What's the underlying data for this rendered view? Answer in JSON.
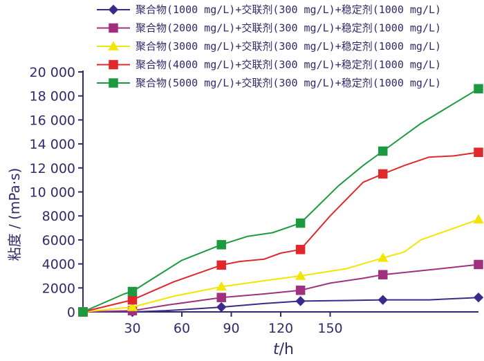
{
  "chart_data": {
    "type": "line",
    "xlabel_var": "t",
    "xlabel_unit": "/h",
    "ylabel": "粘度 / (mPa·s)",
    "ylim": [
      0,
      20000
    ],
    "xlim": [
      0,
      240
    ],
    "x_ticks": [
      30,
      60,
      90,
      120,
      150
    ],
    "y_ticks": [
      {
        "value": 0,
        "label": "0"
      },
      {
        "value": 2000,
        "label": "2000"
      },
      {
        "value": 4000,
        "label": "4000"
      },
      {
        "value": 6000,
        "label": "6000"
      },
      {
        "value": 8000,
        "label": "8000"
      },
      {
        "value": 10000,
        "label": "10 000"
      },
      {
        "value": 12000,
        "label": "12 000"
      },
      {
        "value": 14000,
        "label": "14 000"
      },
      {
        "value": 16000,
        "label": "16 000"
      },
      {
        "value": 18000,
        "label": "18 000"
      },
      {
        "value": 20000,
        "label": "20 000"
      }
    ],
    "legend_position": "top-right",
    "series": [
      {
        "name": "聚合物(1000 mg/L)+交联剂(300 mg/L)+稳定剂(1000 mg/L)",
        "color": "#3b2a8c",
        "marker": "diamond",
        "markers": [
          [
            0,
            0
          ],
          [
            30,
            0
          ],
          [
            84,
            400
          ],
          [
            132,
            900
          ],
          [
            182,
            1000
          ],
          [
            240,
            1200
          ]
        ],
        "line": [
          [
            0,
            0
          ],
          [
            30,
            0
          ],
          [
            50,
            100
          ],
          [
            84,
            400
          ],
          [
            110,
            700
          ],
          [
            132,
            900
          ],
          [
            160,
            950
          ],
          [
            182,
            1000
          ],
          [
            210,
            1000
          ],
          [
            240,
            1200
          ]
        ]
      },
      {
        "name": "聚合物(2000 mg/L)+交联剂(300 mg/L)+稳定剂(1000 mg/L)",
        "color": "#a0307e",
        "marker": "square",
        "markers": [
          [
            0,
            0
          ],
          [
            30,
            100
          ],
          [
            84,
            1200
          ],
          [
            132,
            1800
          ],
          [
            182,
            3100
          ],
          [
            240,
            3950
          ]
        ],
        "line": [
          [
            0,
            0
          ],
          [
            30,
            100
          ],
          [
            50,
            550
          ],
          [
            84,
            1200
          ],
          [
            110,
            1500
          ],
          [
            132,
            1800
          ],
          [
            150,
            2400
          ],
          [
            170,
            2800
          ],
          [
            182,
            3100
          ],
          [
            210,
            3500
          ],
          [
            240,
            3950
          ]
        ]
      },
      {
        "name": "聚合物(3000 mg/L)+交联剂(300 mg/L)+稳定剂(1000 mg/L)",
        "color": "#f2e600",
        "marker": "triangle",
        "markers": [
          [
            0,
            0
          ],
          [
            30,
            400
          ],
          [
            84,
            2100
          ],
          [
            132,
            3000
          ],
          [
            182,
            4500
          ],
          [
            240,
            7700
          ]
        ],
        "line": [
          [
            0,
            0
          ],
          [
            30,
            400
          ],
          [
            55,
            1300
          ],
          [
            84,
            2100
          ],
          [
            110,
            2600
          ],
          [
            132,
            3000
          ],
          [
            160,
            3600
          ],
          [
            182,
            4500
          ],
          [
            195,
            5000
          ],
          [
            205,
            6000
          ],
          [
            240,
            7700
          ]
        ]
      },
      {
        "name": "聚合物(4000 mg/L)+交联剂(300 mg/L)+稳定剂(1000 mg/L)",
        "color": "#e0282c",
        "marker": "square",
        "markers": [
          [
            0,
            0
          ],
          [
            30,
            1000
          ],
          [
            84,
            3900
          ],
          [
            132,
            5200
          ],
          [
            182,
            11500
          ],
          [
            240,
            13300
          ]
        ],
        "line": [
          [
            0,
            0
          ],
          [
            30,
            1000
          ],
          [
            55,
            2500
          ],
          [
            84,
            3900
          ],
          [
            95,
            4200
          ],
          [
            110,
            4400
          ],
          [
            120,
            4900
          ],
          [
            132,
            5200
          ],
          [
            150,
            8000
          ],
          [
            170,
            10800
          ],
          [
            182,
            11500
          ],
          [
            195,
            12200
          ],
          [
            210,
            12900
          ],
          [
            225,
            13000
          ],
          [
            240,
            13300
          ]
        ]
      },
      {
        "name": "聚合物(5000 mg/L)+交联剂(300 mg/L)+稳定剂(1000 mg/L)",
        "color": "#1c9a40",
        "marker": "square",
        "markers": [
          [
            0,
            0
          ],
          [
            30,
            1700
          ],
          [
            84,
            5600
          ],
          [
            132,
            7400
          ],
          [
            182,
            13400
          ],
          [
            240,
            18600
          ]
        ],
        "line": [
          [
            0,
            0
          ],
          [
            25,
            1500
          ],
          [
            30,
            1700
          ],
          [
            45,
            3000
          ],
          [
            60,
            4300
          ],
          [
            84,
            5600
          ],
          [
            100,
            6300
          ],
          [
            115,
            6600
          ],
          [
            132,
            7400
          ],
          [
            155,
            10500
          ],
          [
            170,
            12200
          ],
          [
            182,
            13400
          ],
          [
            205,
            15700
          ],
          [
            240,
            18600
          ]
        ]
      }
    ]
  }
}
